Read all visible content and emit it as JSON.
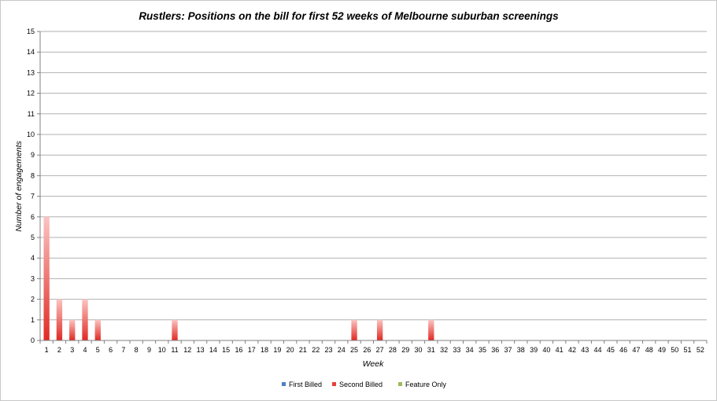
{
  "chart_data": {
    "type": "bar",
    "stacked": true,
    "title": "Rustlers: Positions on the bill for first 52 weeks of Melbourne suburban screenings",
    "xlabel": "Week",
    "ylabel": "Number of engagements",
    "ylim": [
      0,
      15
    ],
    "ytick_step": 1,
    "grid": true,
    "legend_position": "bottom",
    "categories": [
      "1",
      "2",
      "3",
      "4",
      "5",
      "6",
      "7",
      "8",
      "9",
      "10",
      "11",
      "12",
      "13",
      "14",
      "15",
      "16",
      "17",
      "18",
      "19",
      "20",
      "21",
      "22",
      "23",
      "24",
      "25",
      "26",
      "27",
      "28",
      "29",
      "30",
      "31",
      "32",
      "33",
      "34",
      "35",
      "36",
      "37",
      "38",
      "39",
      "40",
      "41",
      "42",
      "43",
      "44",
      "45",
      "46",
      "47",
      "48",
      "49",
      "50",
      "51",
      "52"
    ],
    "series": [
      {
        "name": "First Billed",
        "color": "#4f81bd",
        "values": [
          0,
          0,
          0,
          0,
          0,
          0,
          0,
          0,
          0,
          0,
          0,
          0,
          0,
          0,
          0,
          0,
          0,
          0,
          0,
          0,
          0,
          0,
          0,
          0,
          0,
          0,
          0,
          0,
          0,
          0,
          0,
          0,
          0,
          0,
          0,
          0,
          0,
          0,
          0,
          0,
          0,
          0,
          0,
          0,
          0,
          0,
          0,
          0,
          0,
          0,
          0,
          0
        ]
      },
      {
        "name": "Second Billed",
        "color": "#e8403a",
        "values": [
          6,
          2,
          1,
          2,
          1,
          0,
          0,
          0,
          0,
          0,
          1,
          0,
          0,
          0,
          0,
          0,
          0,
          0,
          0,
          0,
          0,
          0,
          0,
          0,
          1,
          0,
          1,
          0,
          0,
          0,
          1,
          0,
          0,
          0,
          0,
          0,
          0,
          0,
          0,
          0,
          0,
          0,
          0,
          0,
          0,
          0,
          0,
          0,
          0,
          0,
          0,
          0
        ]
      },
      {
        "name": "Feature Only",
        "color": "#9bbb59",
        "values": [
          0,
          0,
          0,
          0,
          0,
          0,
          0,
          0,
          0,
          0,
          0,
          0,
          0,
          0,
          0,
          0,
          0,
          0,
          0,
          0,
          0,
          0,
          0,
          0,
          0,
          0,
          0,
          0,
          0,
          0,
          0,
          0,
          0,
          0,
          0,
          0,
          0,
          0,
          0,
          0,
          0,
          0,
          0,
          0,
          0,
          0,
          0,
          0,
          0,
          0,
          0,
          0
        ]
      }
    ]
  }
}
